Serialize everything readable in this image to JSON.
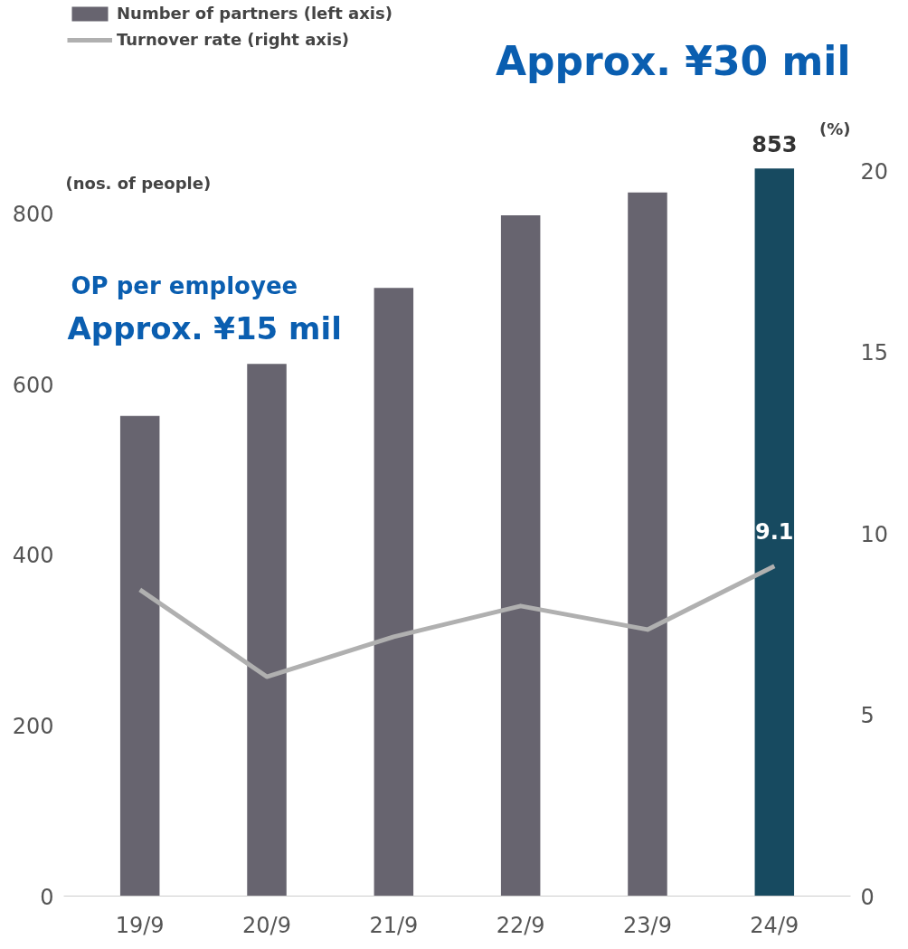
{
  "chart_data": {
    "type": "bar",
    "categories": [
      "19/9",
      "20/9",
      "21/9",
      "22/9",
      "23/9",
      "24/9"
    ],
    "series": [
      {
        "name": "Number of partners (left axis)",
        "colors": [
          "#67646f",
          "#67646f",
          "#67646f",
          "#67646f",
          "#67646f",
          "#174a60"
        ],
        "values": [
          563,
          624,
          713,
          798,
          825,
          853
        ],
        "value_labels": [
          null,
          null,
          null,
          null,
          null,
          "853"
        ]
      },
      {
        "name": "Turnover rate (right axis)",
        "type": "line",
        "axis": "y2",
        "color": "#b0b0b0",
        "values": [
          8.45,
          6.05,
          7.15,
          8.0,
          7.35,
          9.1
        ],
        "value_labels": [
          null,
          null,
          null,
          null,
          null,
          "9.1"
        ]
      }
    ],
    "ylabel": "(nos. of people)",
    "y2label": "(%)",
    "ylim": [
      0,
      1050
    ],
    "yticks": [
      0,
      200,
      400,
      600,
      800
    ],
    "y2lim": [
      0,
      24.7
    ],
    "y2ticks": [
      0,
      5,
      10,
      15,
      20
    ],
    "annotations": [
      "OP per employee",
      "Approx. ¥15 mil",
      "Approx. ¥30 mil"
    ],
    "legend": "top left",
    "grid": false,
    "marker": "none",
    "line_style": "solid"
  }
}
